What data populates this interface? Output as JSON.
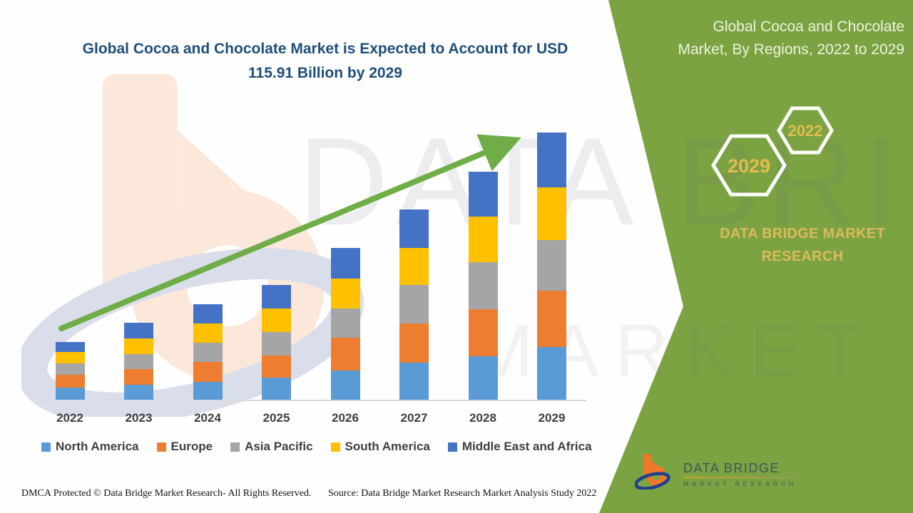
{
  "header": {
    "lines": [
      "Global Cocoa and Chocolate Market is Expected to Account for USD",
      "115.91 Billion by 2029"
    ]
  },
  "side_panel": {
    "title_lines": [
      "Global Cocoa and Chocolate",
      "Market, By Regions, 2022 to 2029"
    ],
    "hexagon_years": [
      "2029",
      "2022"
    ],
    "brand_lines": [
      "DATA BRIDGE MARKET",
      "RESEARCH"
    ]
  },
  "watermark": {
    "line1": "DATA BRIDGE",
    "line2": "MARKET RESEARCH"
  },
  "chart_data": {
    "type": "bar",
    "stacked": true,
    "title": "Global Cocoa and Chocolate Market, By Regions, 2022 to 2029",
    "categories": [
      "2022",
      "2023",
      "2024",
      "2025",
      "2026",
      "2027",
      "2028",
      "2029"
    ],
    "series": [
      {
        "name": "North America",
        "color": "#5B9BD5",
        "values": [
          5.3,
          6.5,
          7.7,
          9.6,
          12.7,
          16.1,
          18.9,
          22.9
        ]
      },
      {
        "name": "Europe",
        "color": "#ED7D31",
        "values": [
          5.6,
          6.8,
          8.7,
          9.6,
          14.2,
          17.0,
          20.4,
          24.4
        ]
      },
      {
        "name": "Asia Pacific",
        "color": "#A5A5A5",
        "values": [
          4.9,
          6.5,
          8.3,
          10.2,
          12.7,
          16.7,
          20.4,
          21.9
        ]
      },
      {
        "name": "South America",
        "color": "#FFC000",
        "values": [
          4.9,
          6.8,
          8.3,
          10.2,
          13.0,
          16.1,
          19.8,
          22.9
        ]
      },
      {
        "name": "Middle East and Africa",
        "color": "#4472C4",
        "values": [
          4.3,
          6.8,
          8.3,
          10.2,
          13.3,
          16.7,
          19.5,
          23.8
        ]
      }
    ],
    "totals_by_year": [
      25.0,
      33.4,
      41.3,
      49.8,
      65.9,
      82.6,
      99.0,
      115.91
    ],
    "units": "USD Billion (est. from bar heights; 2029 total stated as USD 115.91 Billion)",
    "ylim": [
      0,
      120
    ],
    "grid": false,
    "legend_position": "bottom",
    "annotations": [
      {
        "type": "arrow",
        "meaning": "upward growth trend 2022 to 2029"
      }
    ]
  },
  "footer": {
    "dmca": "DMCA Protected © Data Bridge Market Research- All Rights Reserved.",
    "source": "Source: Data Bridge Market Research Market Analysis Study 2022",
    "logo": {
      "title": "DATA BRIDGE",
      "subtitle": "MARKET RESEARCH"
    }
  },
  "colors": {
    "panel_green": "#7BA342",
    "arrow_green": "#6FAD47",
    "title_navy": "#1F4E79",
    "gold": "#DDB95A",
    "axis_text": "#3F3F3F"
  }
}
